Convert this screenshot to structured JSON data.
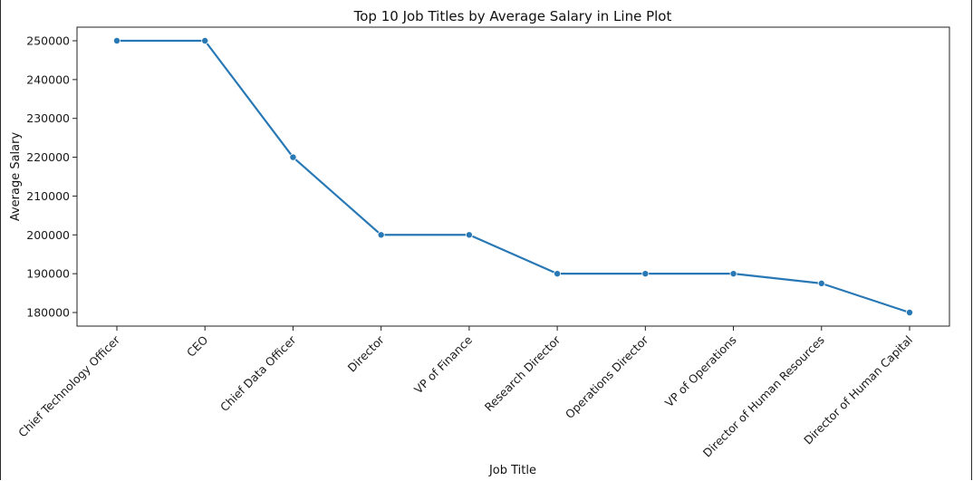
{
  "chart_data": {
    "type": "line",
    "title": "Top 10 Job Titles by Average Salary in Line Plot",
    "xlabel": "Job Title",
    "ylabel": "Average Salary",
    "categories": [
      "Chief Technology Officer",
      "CEO",
      "Chief Data Officer",
      "Director",
      "VP of Finance",
      "Research Director",
      "Operations Director",
      "VP of Operations",
      "Director of Human Resources",
      "Director of Human Capital"
    ],
    "values": [
      250000,
      250000,
      220000,
      200000,
      200000,
      190000,
      190000,
      190000,
      187500,
      180000
    ],
    "yticks": [
      180000,
      190000,
      200000,
      210000,
      220000,
      230000,
      240000,
      250000
    ],
    "ylim": [
      176500,
      253500
    ],
    "grid": false,
    "legend": "none",
    "line_color": "#2878b5",
    "marker": "circle"
  }
}
